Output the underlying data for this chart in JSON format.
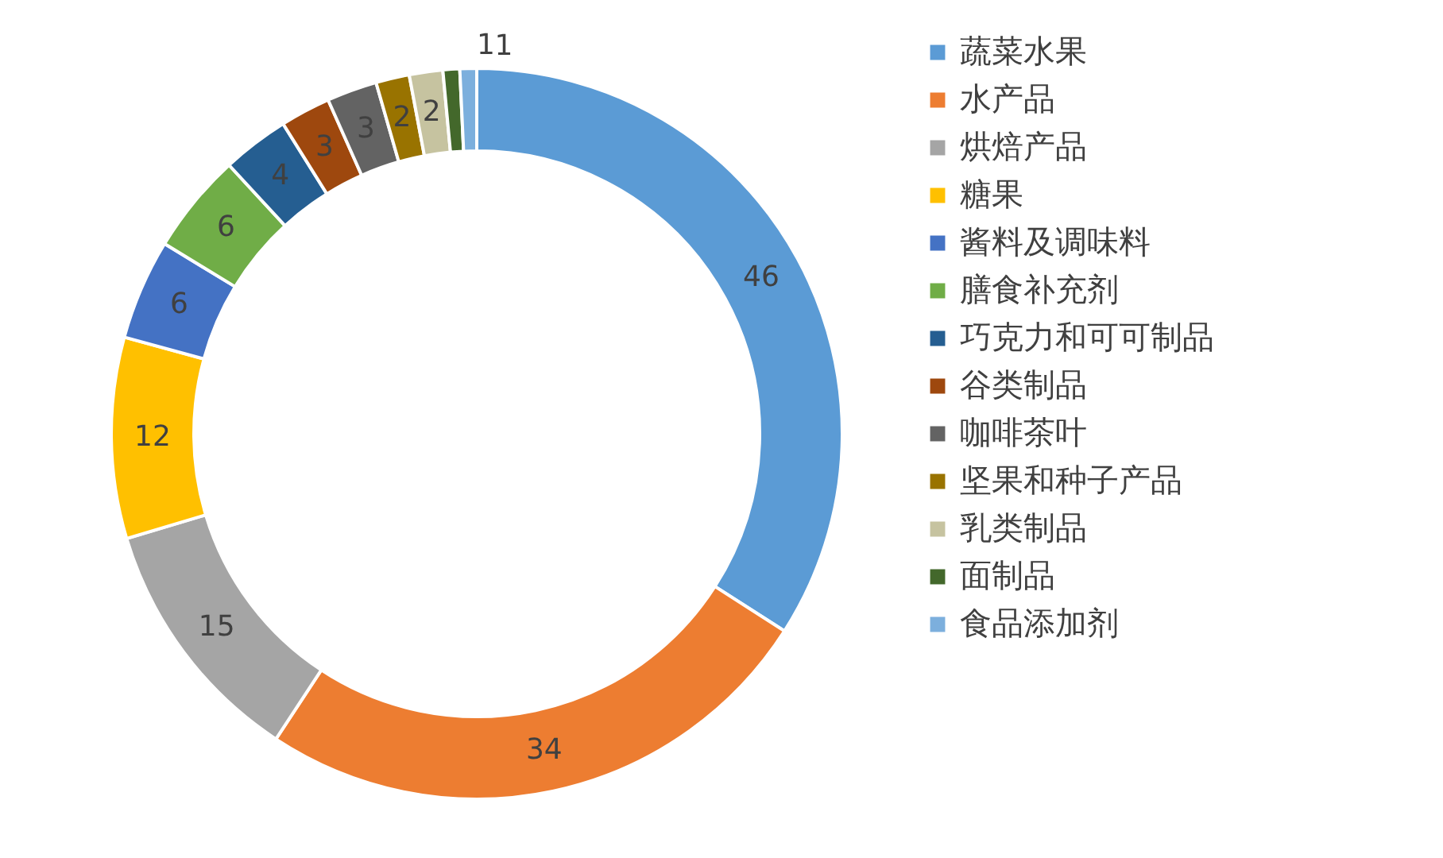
{
  "chart_data": {
    "type": "donut",
    "categories": [
      "蔬菜水果",
      "水产品",
      "烘焙产品",
      "糖果",
      "酱料及调味料",
      "膳食补充剂",
      "巧克力和可可制品",
      "谷类制品",
      "咖啡茶叶",
      "坚果和种子产品",
      "乳类制品",
      "面制品",
      "食品添加剂"
    ],
    "values": [
      46,
      34,
      15,
      12,
      6,
      6,
      4,
      3,
      3,
      2,
      2,
      1,
      1
    ],
    "colors": [
      "#5b9bd5",
      "#ed7d31",
      "#a5a5a5",
      "#ffc000",
      "#4472c4",
      "#70ad47",
      "#255e91",
      "#9e480e",
      "#636363",
      "#997300",
      "#c6c3a0",
      "#43682b",
      "#7cafdd"
    ],
    "data_labels": true,
    "legend": "right"
  }
}
